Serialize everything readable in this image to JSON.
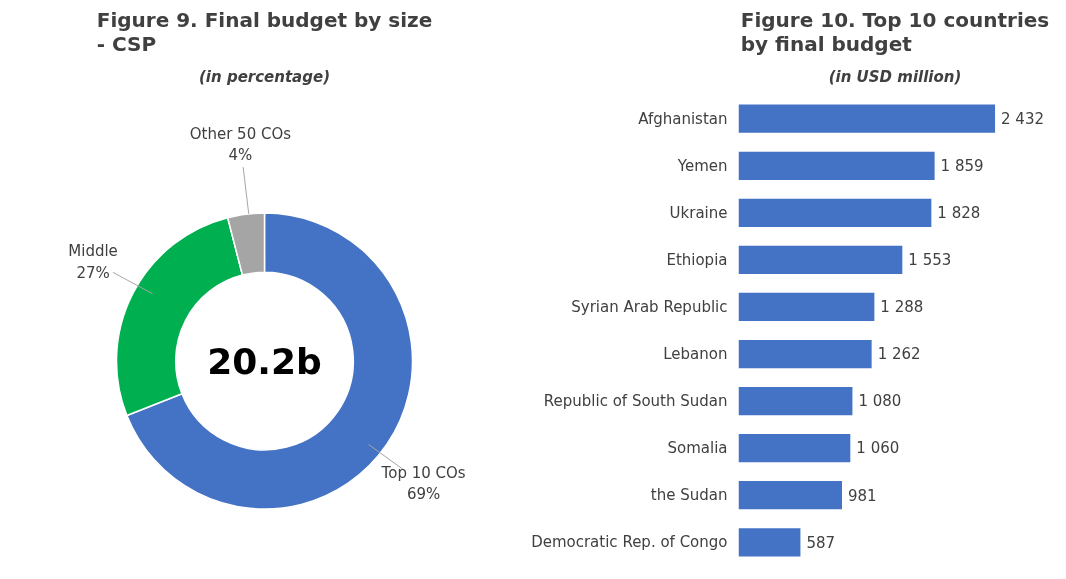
{
  "chart_data": [
    {
      "type": "donut",
      "title": "Figure 9. Final budget by size - CSP",
      "subtitle": "(in percentage)",
      "categories": [
        "Top 10 COs",
        "Middle",
        "Other 50 COs"
      ],
      "values": [
        69,
        27,
        4
      ],
      "colors": [
        "#4472c4",
        "#00b050",
        "#a5a5a5"
      ],
      "value_labels": [
        "69%",
        "27%",
        "4%"
      ],
      "annotations": [
        "20.2b"
      ]
    },
    {
      "type": "bar",
      "orientation": "horizontal",
      "title": "Figure 10. Top 10 countries by final budget",
      "subtitle": "(in USD million)",
      "categories": [
        "Afghanistan",
        "Yemen",
        "Ukraine",
        "Ethiopia",
        "Syrian Arab Republic",
        "Lebanon",
        "Republic of South Sudan",
        "Somalia",
        "the Sudan",
        "Democratic Rep. of Congo"
      ],
      "values": [
        2432,
        1859,
        1828,
        1553,
        1288,
        1262,
        1080,
        1060,
        981,
        587
      ],
      "value_labels": [
        "2 432",
        "1 859",
        "1 828",
        "1 553",
        "1 288",
        "1 262",
        "1 080",
        "1 060",
        "981",
        "587"
      ],
      "color": "#4472c4"
    }
  ]
}
